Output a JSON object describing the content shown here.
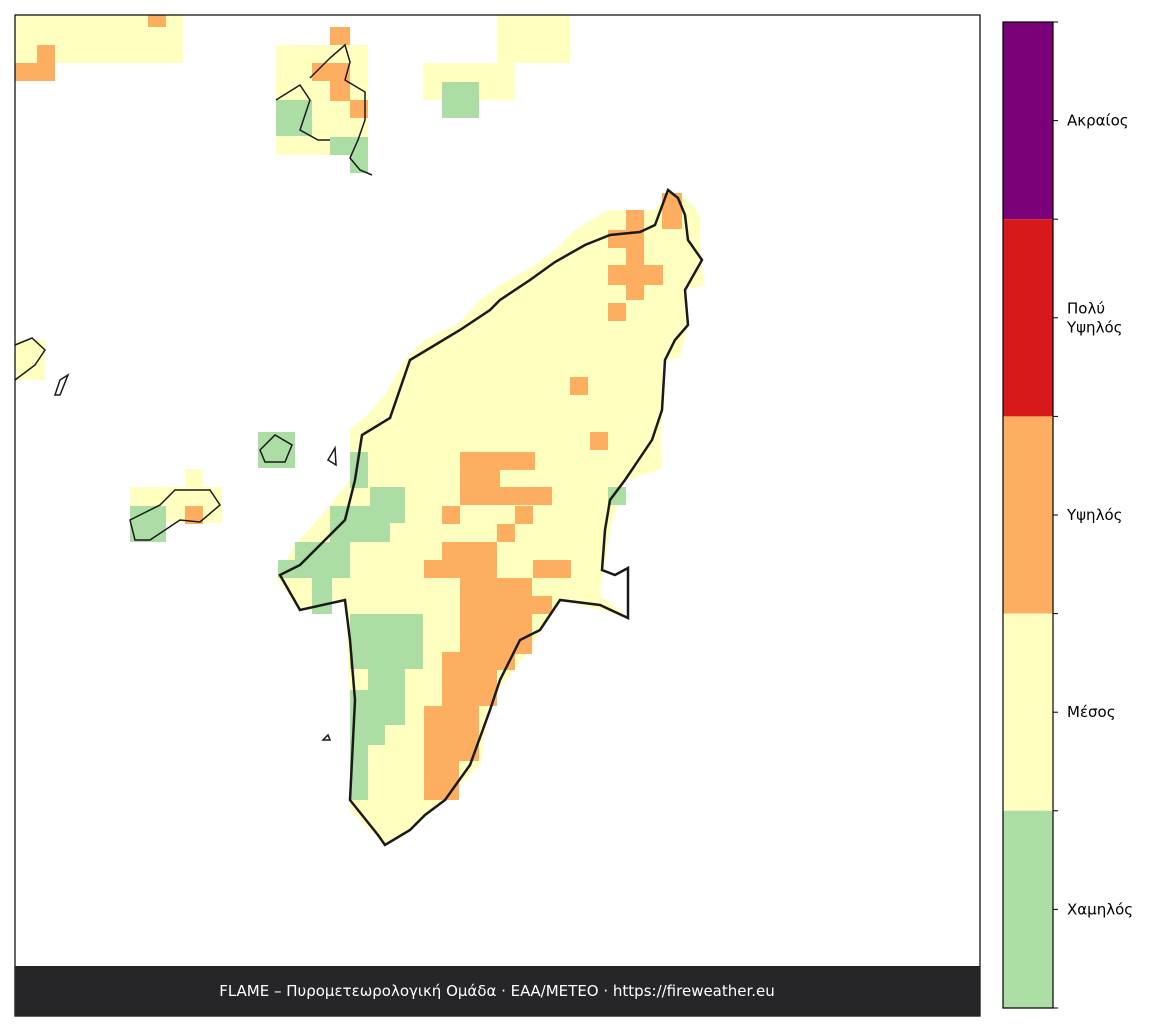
{
  "legend": {
    "items": [
      {
        "label": [
          "Ακραίος"
        ],
        "color": "#7a0177"
      },
      {
        "label": [
          "Πολύ",
          "Υψηλός"
        ],
        "color": "#d7191c"
      },
      {
        "label": [
          "Υψηλός"
        ],
        "color": "#fdae61"
      },
      {
        "label": [
          "Μέσος"
        ],
        "color": "#ffffc0"
      },
      {
        "label": [
          "Χαμηλός"
        ],
        "color": "#abdda4"
      }
    ]
  },
  "footer": "FLAME – Πυρομετεωρολογική Ομάδα · ΕΑΑ/METEO · https://fireweather.eu"
}
